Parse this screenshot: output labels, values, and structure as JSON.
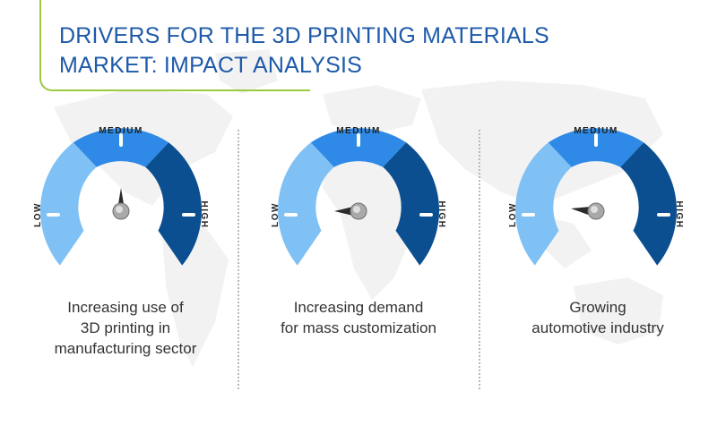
{
  "title": {
    "line1": "DRIVERS FOR THE 3D PRINTING MATERIALS",
    "line2": "MARKET: IMPACT ANALYSIS"
  },
  "colors": {
    "title": "#1e5aa8",
    "accent_line": "#9bc93f",
    "low": "#7fc1f5",
    "medium": "#2e8ae6",
    "high": "#0c4f91",
    "map": "#f1f1f1"
  },
  "gauge_labels": {
    "low": "LOW",
    "medium": "MEDIUM",
    "high": "HIGH"
  },
  "drivers": [
    {
      "caption": [
        "Increasing use of",
        "3D printing in",
        "manufacturing sector"
      ],
      "impact": "MEDIUM"
    },
    {
      "caption": [
        "Increasing demand",
        "for mass customization"
      ],
      "impact": "LOW"
    },
    {
      "caption": [
        "Growing",
        "automotive industry"
      ],
      "impact": "LOW"
    }
  ]
}
